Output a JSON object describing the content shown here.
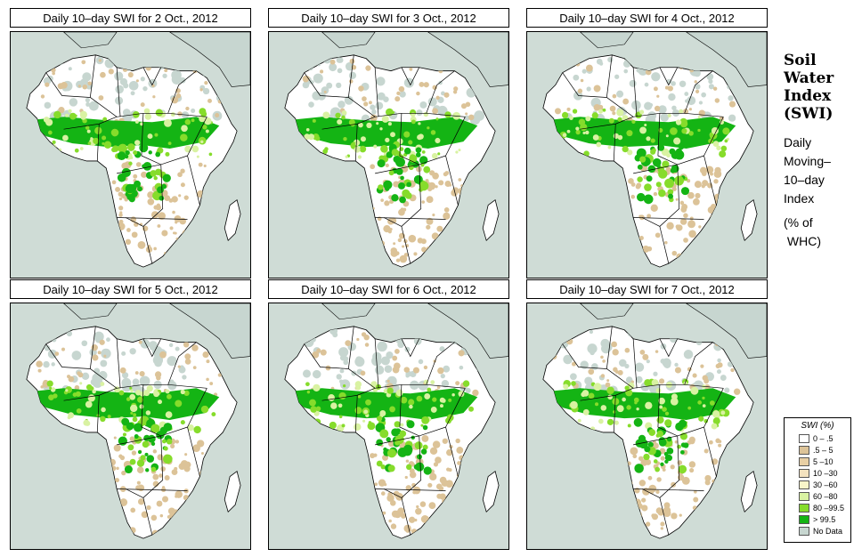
{
  "panels": [
    {
      "title": "Daily 10–day SWI for  2 Oct., 2012"
    },
    {
      "title": "Daily 10–day SWI for  3 Oct., 2012"
    },
    {
      "title": "Daily 10–day SWI for  4 Oct., 2012"
    },
    {
      "title": "Daily 10–day SWI for  5 Oct., 2012"
    },
    {
      "title": "Daily 10–day SWI for  6 Oct., 2012"
    },
    {
      "title": "Daily 10–day SWI for  7 Oct., 2012"
    }
  ],
  "side": {
    "title_lines": [
      "Soil",
      "Water",
      "Index",
      "(SWI)"
    ],
    "desc_lines": [
      "Daily",
      "Moving–",
      "10–day",
      "Index"
    ],
    "note_lines": [
      "(% of",
      " WHC)"
    ]
  },
  "legend": {
    "title": "SWI (%)",
    "items": [
      {
        "label": "0 – .5",
        "color": "#ffffff"
      },
      {
        "label": ".5 – 5",
        "color": "#dcc398"
      },
      {
        "label": "5 –10",
        "color": "#e8cfa4"
      },
      {
        "label": "10 –30",
        "color": "#f3e2bf"
      },
      {
        "label": "30 –60",
        "color": "#f9f5c9"
      },
      {
        "label": "60 –80",
        "color": "#d9f2a2"
      },
      {
        "label": "80 –99.5",
        "color": "#86dc2b"
      },
      {
        "label": "> 99.5",
        "color": "#14b414"
      },
      {
        "label": "No Data",
        "color": "#c7d6d0"
      }
    ]
  },
  "colors": {
    "ocean": "#cfdcd6",
    "land": "#ffffff",
    "dry": "#dcc398",
    "saturated": "#14b414",
    "wet": "#86dc2b",
    "moist": "#d9f2a2",
    "nodata": "#c7d6d0"
  }
}
